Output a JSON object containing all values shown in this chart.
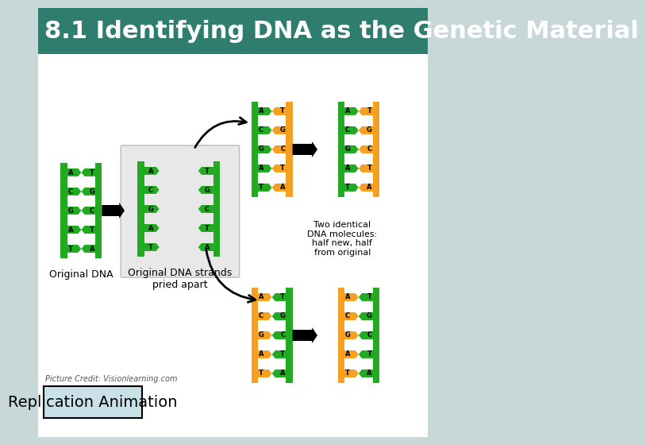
{
  "title": "8.1 Identifying DNA as the Genetic Material",
  "title_bg_color": "#2E7D6E",
  "title_text_color": "#FFFFFF",
  "title_fontsize": 22,
  "slide_bg_color": "#C8D8D8",
  "content_bg_color": "#FFFFFF",
  "button_text": "Replication Animation",
  "button_bg": "#C8E0E8",
  "button_border": "#000000",
  "credit_text": "Picture Credit: Visionlearning.com",
  "credit_fontsize": 7,
  "button_fontsize": 14,
  "green_color": "#22AA22",
  "orange_color": "#F5A020",
  "label_original": "Original DNA",
  "label_strands": "Original DNA strands\npried apart",
  "label_two_identical": "Two identical\nDNA molecules:\nhalf new, half\nfrom original",
  "bases_left": [
    "A",
    "C",
    "G",
    "A",
    "T"
  ],
  "bases_right_orig": [
    "T",
    "G",
    "C",
    "T",
    "A"
  ],
  "label_fontsize": 9
}
